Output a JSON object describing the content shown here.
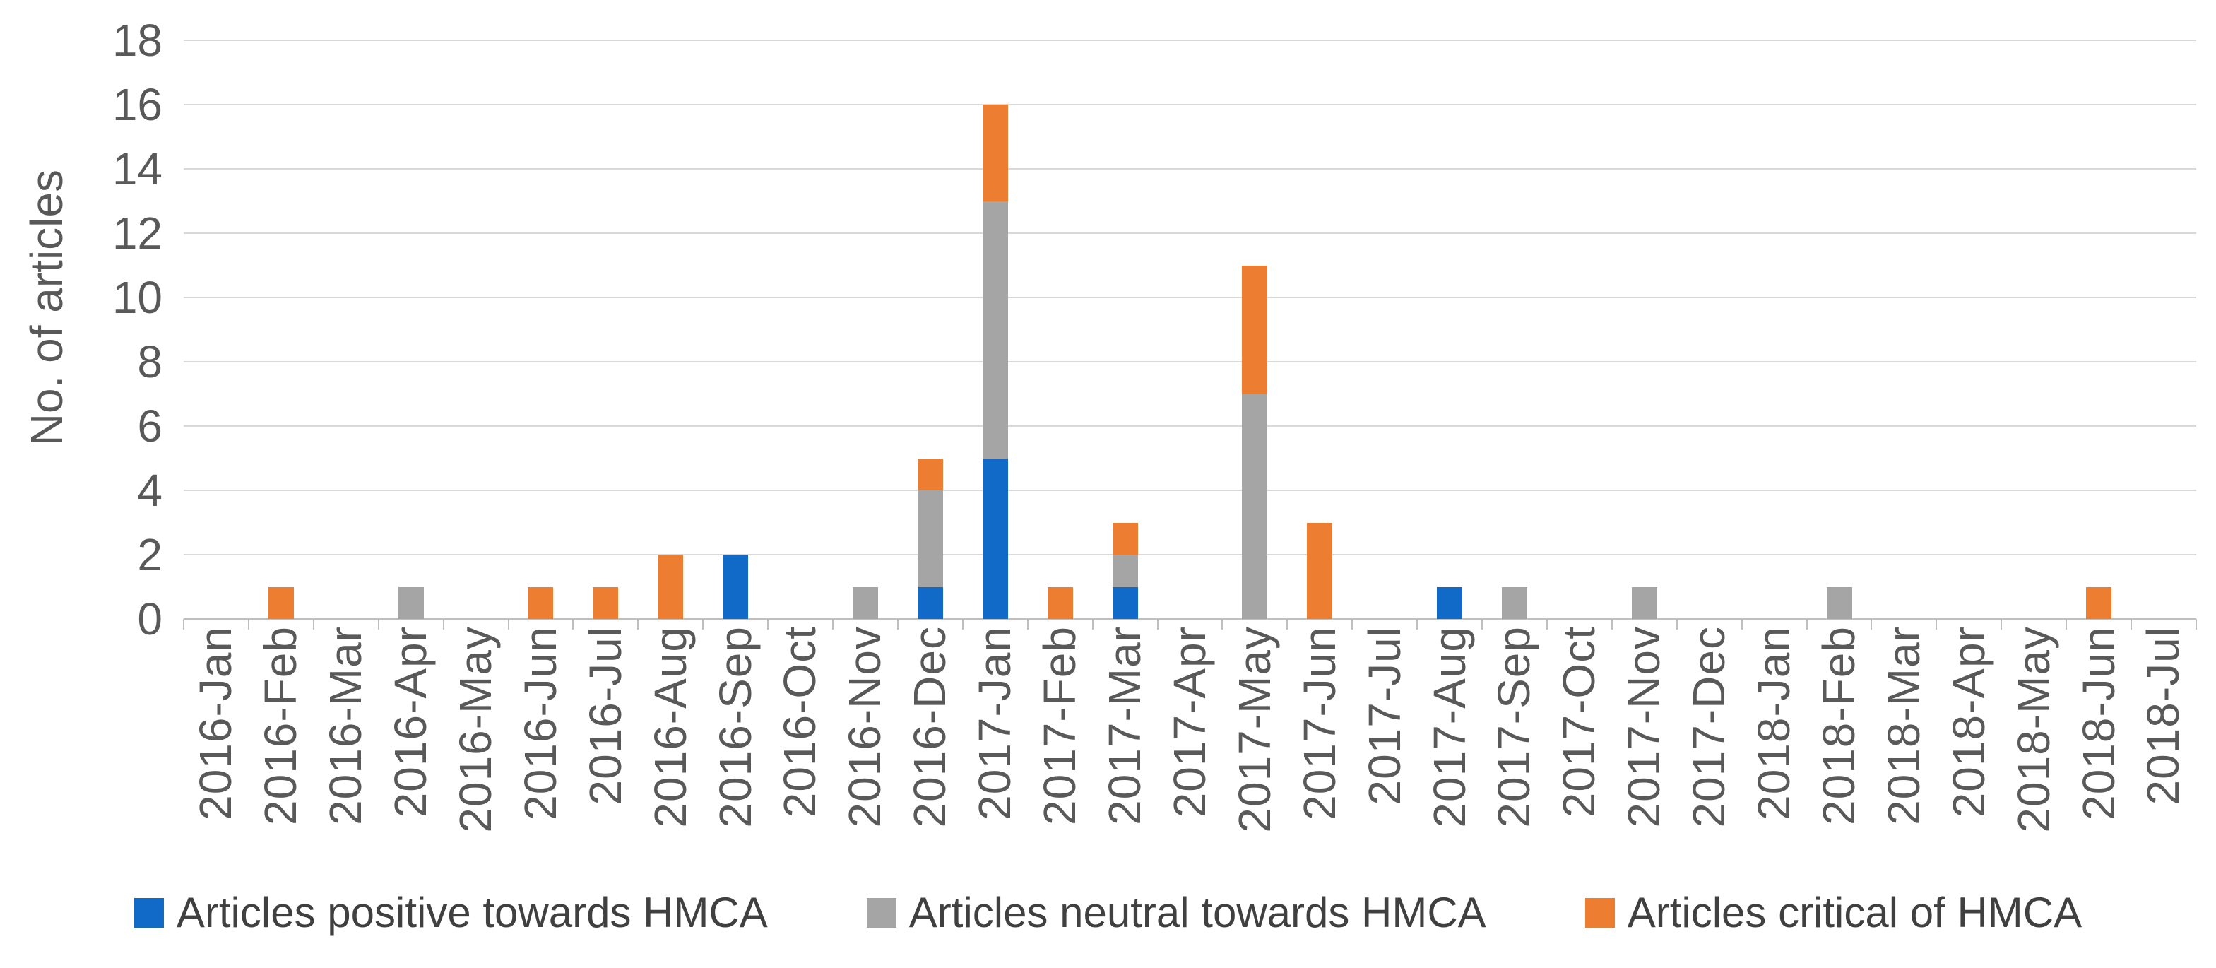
{
  "styles": {
    "background": "#FFFFFF",
    "grid_color": "#D9D9D9",
    "axis_color": "#BFBFBF",
    "tick_text_color": "#595959",
    "legend_text_color": "#404040",
    "positive_color": "#1169C8",
    "neutral_color": "#A5A5A5",
    "critical_color": "#ED7D31"
  },
  "chart_data": {
    "type": "bar",
    "stacked": true,
    "title": "",
    "xlabel": "",
    "ylabel": "No. of articles",
    "ylim": [
      0,
      18
    ],
    "yticks": [
      0,
      2,
      4,
      6,
      8,
      10,
      12,
      14,
      16,
      18
    ],
    "grid": true,
    "legend_position": "bottom",
    "categories": [
      "2016-Jan",
      "2016-Feb",
      "2016-Mar",
      "2016-Apr",
      "2016-May",
      "2016-Jun",
      "2016-Jul",
      "2016-Aug",
      "2016-Sep",
      "2016-Oct",
      "2016-Nov",
      "2016-Dec",
      "2017-Jan",
      "2017-Feb",
      "2017-Mar",
      "2017-Apr",
      "2017-May",
      "2017-Jun",
      "2017-Jul",
      "2017-Aug",
      "2017-Sep",
      "2017-Oct",
      "2017-Nov",
      "2017-Dec",
      "2018-Jan",
      "2018-Feb",
      "2018-Mar",
      "2018-Apr",
      "2018-May",
      "2018-Jun",
      "2018-Jul"
    ],
    "series": [
      {
        "name": "Articles positive towards HMCA",
        "color": "#1169C8",
        "values": [
          0,
          0,
          0,
          0,
          0,
          0,
          0,
          0,
          2,
          0,
          0,
          1,
          5,
          0,
          1,
          0,
          0,
          0,
          0,
          1,
          0,
          0,
          0,
          0,
          0,
          0,
          0,
          0,
          0,
          0,
          0
        ]
      },
      {
        "name": "Articles neutral towards HMCA",
        "color": "#A5A5A5",
        "values": [
          0,
          0,
          0,
          1,
          0,
          0,
          0,
          0,
          0,
          0,
          1,
          3,
          8,
          0,
          1,
          0,
          7,
          0,
          0,
          0,
          1,
          0,
          1,
          0,
          0,
          1,
          0,
          0,
          0,
          0,
          0
        ]
      },
      {
        "name": "Articles critical of HMCA",
        "color": "#ED7D31",
        "values": [
          0,
          1,
          0,
          0,
          0,
          1,
          1,
          2,
          0,
          0,
          0,
          1,
          3,
          1,
          1,
          0,
          4,
          3,
          0,
          0,
          0,
          0,
          0,
          0,
          0,
          0,
          0,
          0,
          0,
          1,
          0
        ]
      }
    ]
  }
}
